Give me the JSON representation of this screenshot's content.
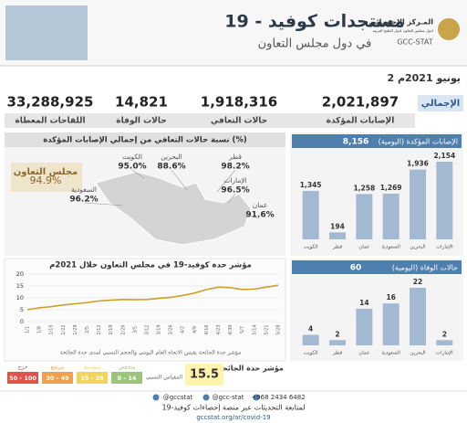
{
  "header": {
    "title": "مستجدات كوفيد - 19",
    "subtitle": "في دول مجلس التعاون",
    "org_ar": "المـركز الإحصـائي",
    "org_ar_sub": "لدول مجلس التعاون لدول الخليج العربية",
    "org_en": "GCC-STAT"
  },
  "date": "2 يونيو 2021م",
  "total_tag": "الإجمالي",
  "summary": [
    {
      "value": "2,021,897",
      "label": "الإصابات المؤكدة"
    },
    {
      "value": "1,918,316",
      "label": "حالات التعافي"
    },
    {
      "value": "14,821",
      "label": "حالات الوفاة"
    },
    {
      "value": "33,288,925",
      "label": "اللقاحات المعطاة"
    }
  ],
  "map": {
    "title": "نسبة حالات التعافي من إجمالي الإصابات المؤكدة (%)",
    "regions": [
      {
        "name": "مجلس التعاون",
        "value": "94.9%"
      },
      {
        "name": "الكويت",
        "value": "95.0%"
      },
      {
        "name": "البحرين",
        "value": "88.6%"
      },
      {
        "name": "قطر",
        "value": "98.2%"
      },
      {
        "name": "الإمارات",
        "value": "96.5%"
      },
      {
        "name": "عمان",
        "value": "91.6%"
      },
      {
        "name": "السعودية",
        "value": "96.2%"
      }
    ]
  },
  "chart_data": [
    {
      "type": "bar",
      "title": "الإصابات المؤكدة (اليومية)",
      "total": "8,156",
      "categories": [
        "الكويت",
        "قطر",
        "عمان",
        "السعودية",
        "البحرين",
        "الإمارات"
      ],
      "values": [
        1345,
        194,
        1258,
        1269,
        1936,
        2154
      ],
      "value_labels": [
        "1,345",
        "194",
        "1,258",
        "1,269",
        "1,936",
        "2,154"
      ],
      "color": "#a3b9d2"
    },
    {
      "type": "bar",
      "title": "حالات الوفاة (اليومية)",
      "total": "60",
      "categories": [
        "الكويت",
        "قطر",
        "عمان",
        "السعودية",
        "البحرين",
        "الإمارات"
      ],
      "values": [
        4,
        2,
        14,
        16,
        22,
        2
      ],
      "color": "#a3b9d2"
    },
    {
      "type": "line",
      "title": "مؤشر حدة كوفيد-19 في مجلس التعاون خلال 2021م",
      "note": "مؤشر حدة الجائحة يقيس الاتجاه العام اليومي والحجم النسبي لمدى حدة الجائحة",
      "categories": [
        "1/1",
        "1/8",
        "1/15",
        "1/22",
        "1/29",
        "2/5",
        "2/12",
        "2/19",
        "2/26",
        "3/5",
        "3/12",
        "3/19",
        "3/26",
        "4/2",
        "4/9",
        "4/16",
        "4/23",
        "4/30",
        "5/7",
        "5/14",
        "5/21",
        "5/28"
      ],
      "values": [
        5,
        5.8,
        6.3,
        7,
        7.5,
        8,
        8.7,
        9,
        9.3,
        9.2,
        9.3,
        9.8,
        10.2,
        11,
        12,
        13.5,
        14.5,
        14.3,
        13.5,
        13.7,
        14.5,
        15.3
      ],
      "color": "#c9a227",
      "ylim": [
        0,
        20
      ],
      "yticks": [
        0,
        5,
        10,
        15,
        20
      ],
      "grid": true
    }
  ],
  "severity": {
    "label": "مؤشر حدة الجائحة",
    "value": "15.5",
    "scale_title": "المقياس النسبي",
    "levels": [
      {
        "name": "منخفض",
        "range": "0 - 14",
        "color": "#9cc47a"
      },
      {
        "name": "متوسط",
        "range": "15 - 29",
        "color": "#f2d35c"
      },
      {
        "name": "مرتفع",
        "range": "30 - 49",
        "color": "#f0a04b"
      },
      {
        "name": "حرج",
        "range": "50 - 100",
        "color": "#e0524a"
      }
    ]
  },
  "footer": {
    "handles": [
      "@gccstat",
      "@gcc-stat",
      "+968 2434 6482"
    ],
    "text": "لمتابعة التحديثات عبر منصة إحصاءات كوفيد-19",
    "url": "gccstat.org/ar/covid-19"
  }
}
